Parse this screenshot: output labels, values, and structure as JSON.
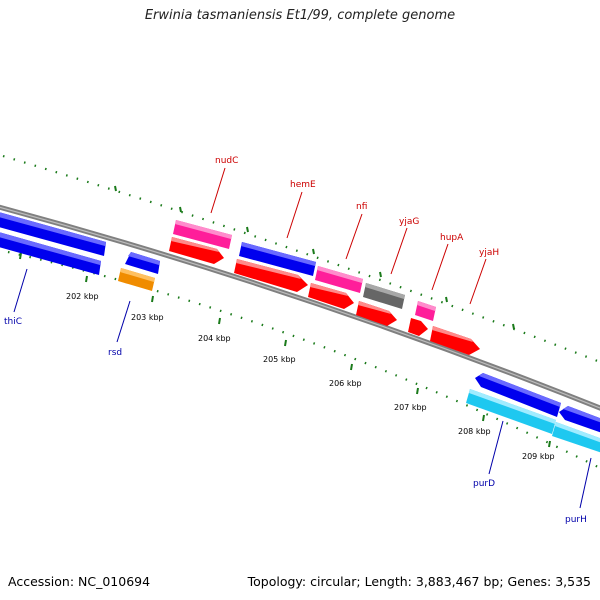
{
  "title": "Erwinia tasmaniensis Et1/99, complete genome",
  "footer": {
    "accession": "Accession: NC_010694",
    "summary": "Topology: circular; Length: 3,883,467 bp; Genes: 3,535"
  },
  "colors": {
    "backbone": "#808080",
    "ticks": "#1a7a1a",
    "blue_gene": "#0000ee",
    "red_gene": "#ff0000",
    "pink_gene": "#ff1e9a",
    "gray_gene": "#666666",
    "orange_gene": "#f08c00",
    "cyan_gene": "#1ec8f0",
    "label_top": "#cc0000",
    "label_bottom": "#0000aa"
  },
  "scale_labels": [
    "202 kbp",
    "203 kbp",
    "204 kbp",
    "205 kbp",
    "206 kbp",
    "207 kbp",
    "208 kbp",
    "209 kbp"
  ],
  "gene_labels": [
    {
      "name": "nudC",
      "side": "top"
    },
    {
      "name": "hemE",
      "side": "top"
    },
    {
      "name": "nfi",
      "side": "top"
    },
    {
      "name": "yjaG",
      "side": "top"
    },
    {
      "name": "hupA",
      "side": "top"
    },
    {
      "name": "yjaH",
      "side": "top"
    },
    {
      "name": "thiC",
      "side": "bottom"
    },
    {
      "name": "rsd",
      "side": "bottom"
    },
    {
      "name": "purD",
      "side": "bottom"
    },
    {
      "name": "purH",
      "side": "bottom"
    }
  ]
}
